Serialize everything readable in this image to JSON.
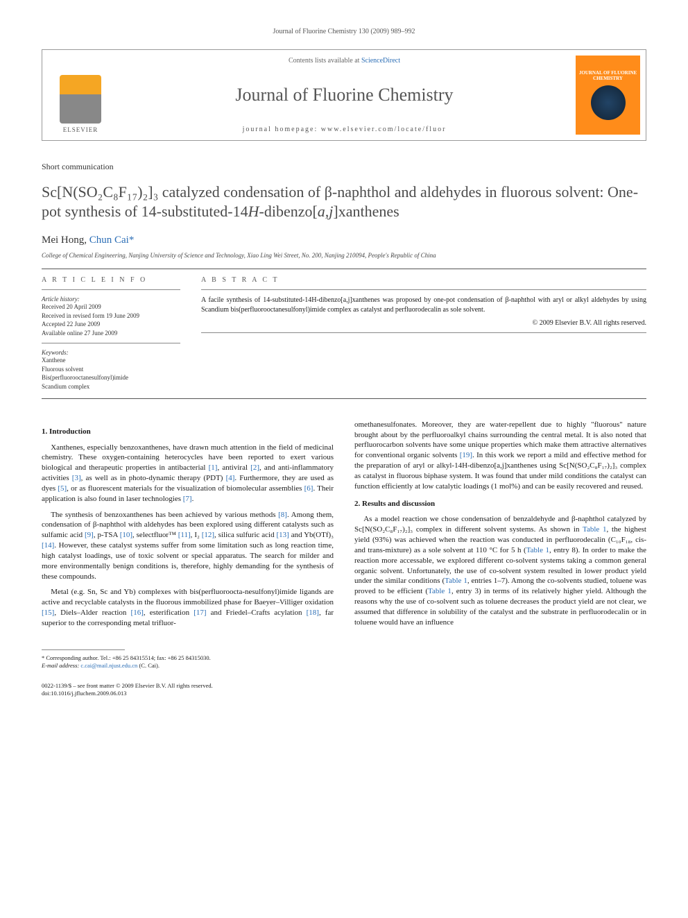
{
  "running_head": "Journal of Fluorine Chemistry 130 (2009) 989–992",
  "header": {
    "contents_prefix": "Contents lists available at ",
    "contents_link": "ScienceDirect",
    "journal": "Journal of Fluorine Chemistry",
    "homepage_label": "journal homepage: www.elsevier.com/locate/fluor",
    "publisher": "ELSEVIER",
    "cover_title": "JOURNAL OF FLUORINE CHEMISTRY"
  },
  "article_type": "Short communication",
  "title_html": "Sc[N(SO₂C₈F₁₇)₂]₃ catalyzed condensation of β-naphthol and aldehydes in fluorous solvent: One-pot synthesis of 14-substituted-14<i>H</i>-dibenzo[<i>a,j</i>]xanthenes",
  "authors": {
    "a1": "Mei Hong",
    "sep": ", ",
    "a2": "Chun Cai",
    "corr_mark": "*"
  },
  "affiliation": "College of Chemical Engineering, Nanjing University of Science and Technology, Xiao Ling Wei Street, No. 200, Nanjing 210094, People's Republic of China",
  "info": {
    "heading": "A R T I C L E   I N F O",
    "history_label": "Article history:",
    "h1": "Received 20 April 2009",
    "h2": "Received in revised form 19 June 2009",
    "h3": "Accepted 22 June 2009",
    "h4": "Available online 27 June 2009",
    "keywords_label": "Keywords:",
    "k1": "Xanthene",
    "k2": "Fluorous solvent",
    "k3": "Bis(perfluorooctanesulfonyl)imide",
    "k4": "Scandium complex"
  },
  "abstract": {
    "heading": "A B S T R A C T",
    "text": "A facile synthesis of 14-substituted-14H-dibenzo[a,j]xanthenes was proposed by one-pot condensation of β-naphthol with aryl or alkyl aldehydes by using Scandium bis(perfluorooctanesulfonyl)imide complex as catalyst and perfluorodecalin as sole solvent.",
    "copyright": "© 2009 Elsevier B.V. All rights reserved."
  },
  "sections": {
    "s1_heading": "1. Introduction",
    "s1_p1": "Xanthenes, especially benzoxanthenes, have drawn much attention in the field of medicinal chemistry. These oxygen-containing heterocycles have been reported to exert various biological and therapeutic properties in antibacterial [1], antiviral [2], and anti-inflammatory activities [3], as well as in photo-dynamic therapy (PDT) [4]. Furthermore, they are used as dyes [5], or as fluorescent materials for the visualization of biomolecular assemblies [6]. Their application is also found in laser technologies [7].",
    "s1_p2": "The synthesis of benzoxanthenes has been achieved by various methods [8]. Among them, condensation of β-naphthol with aldehydes has been explored using different catalysts such as sulfamic acid [9], p-TSA [10], selectfluor™ [11], I₂ [12], silica sulfuric acid [13] and Yb(OTf)₃ [14]. However, these catalyst systems suffer from some limitation such as long reaction time, high catalyst loadings, use of toxic solvent or special apparatus. The search for milder and more environmentally benign conditions is, therefore, highly demanding for the synthesis of these compounds.",
    "s1_p3": "Metal (e.g. Sn, Sc and Yb) complexes with bis(perfluoroocta-nesulfonyl)imide ligands are active and recyclable catalysts in the fluorous immobilized phase for Baeyer–Villiger oxidation [15], Diels–Alder reaction [16], esterification [17] and Friedel–Crafts acylation [18], far superior to the corresponding metal trifluor-",
    "s1_p3b": "omethanesulfonates. Moreover, they are water-repellent due to highly \"fluorous\" nature brought about by the perfluoroalkyl chains surrounding the central metal. It is also noted that perfluorocarbon solvents have some unique properties which make them attractive alternatives for conventional organic solvents [19]. In this work we report a mild and effective method for the preparation of aryl or alkyl-14H-dibenzo[a,j]xanthenes using Sc[N(SO₂C₈F₁₇)₂]₃ complex as catalyst in fluorous biphase system. It was found that under mild conditions the catalyst can function efficiently at low catalytic loadings (1 mol%) and can be easily recovered and reused.",
    "s2_heading": "2. Results and discussion",
    "s2_p1": "As a model reaction we chose condensation of benzaldehyde and β-naphthol catalyzed by Sc[N(SO₂C₈F₁₇)₂]₃ complex in different solvent systems. As shown in Table 1, the highest yield (93%) was achieved when the reaction was conducted in perfluorodecalin (C₁₀F₁₈, cis- and trans-mixture) as a sole solvent at 110 °C for 5 h (Table 1, entry 8). In order to make the reaction more accessable, we explored different co-solvent systems taking a common general organic solvent. Unfortunately, the use of co-solvent system resulted in lower product yield under the similar conditions (Table 1, entries 1–7). Among the co-solvents studied, toluene was proved to be efficient (Table 1, entry 3) in terms of its relatively higher yield. Although the reasons why the use of co-solvent such as toluene decreases the product yield are not clear, we assumed that difference in solubility of the catalyst and the substrate in perfluorodecalin or in toluene would have an influence"
  },
  "footnote": {
    "corr": "* Corresponding author. Tel.: +86 25 84315514; fax: +86 25 84315030.",
    "email_label": "E-mail address:",
    "email": "c.cai@mail.njust.edu.cn",
    "email_who": "(C. Cai)."
  },
  "footer": {
    "issn": "0022-1139/$ – see front matter © 2009 Elsevier B.V. All rights reserved.",
    "doi": "doi:10.1016/j.jfluchem.2009.06.013"
  },
  "colors": {
    "link": "#2a6db5",
    "text": "#1a1a1a",
    "muted": "#555555",
    "cover_bg": "#ff8c1a"
  }
}
